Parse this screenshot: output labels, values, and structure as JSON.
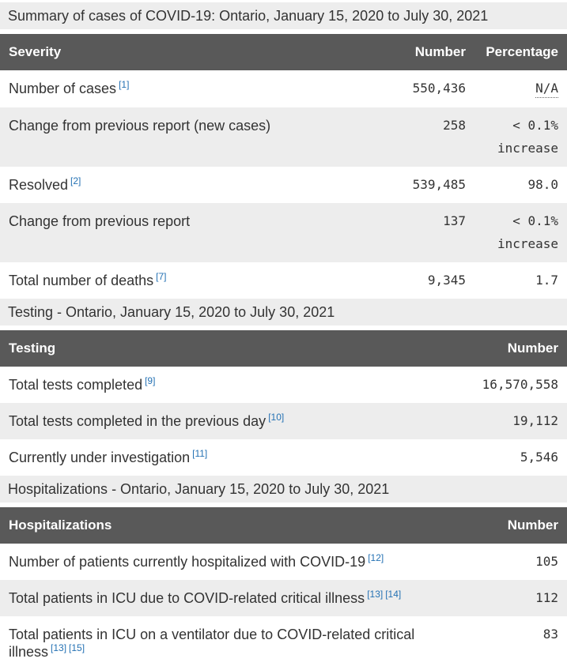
{
  "colors": {
    "header_bg": "#595959",
    "header_text": "#ffffff",
    "caption_bg": "#ededed",
    "stripe_bg": "#ededed",
    "body_bg": "#ffffff",
    "text": "#333333",
    "link": "#2572b4"
  },
  "tables": [
    {
      "caption": "Summary of cases of COVID-19: Ontario, January 15, 2020 to July 30, 2021",
      "columns": [
        "Severity",
        "Number",
        "Percentage"
      ],
      "rows": [
        {
          "label": "Number of cases",
          "footnotes": [
            "[1]"
          ],
          "number": "550,436",
          "percentage": "N/A",
          "percentage_note": ""
        },
        {
          "label": "Change from previous report (new cases)",
          "footnotes": [],
          "number": "258",
          "percentage": "< 0.1%",
          "percentage_note": "increase"
        },
        {
          "label": "Resolved",
          "footnotes": [
            "[2]"
          ],
          "number": "539,485",
          "percentage": "98.0",
          "percentage_note": ""
        },
        {
          "label": "Change from previous report",
          "footnotes": [],
          "number": "137",
          "percentage": "< 0.1%",
          "percentage_note": "increase"
        },
        {
          "label": "Total number of deaths",
          "footnotes": [
            "[7]"
          ],
          "number": "9,345",
          "percentage": "1.7",
          "percentage_note": ""
        }
      ]
    },
    {
      "caption": "Testing - Ontario, January 15, 2020 to July 30, 2021",
      "columns": [
        "Testing",
        "Number"
      ],
      "rows": [
        {
          "label": "Total tests completed",
          "footnotes": [
            "[9]"
          ],
          "number": "16,570,558"
        },
        {
          "label": "Total tests completed in the previous day",
          "footnotes": [
            "[10]"
          ],
          "number": "19,112"
        },
        {
          "label": "Currently under investigation",
          "footnotes": [
            "[11]"
          ],
          "number": "5,546"
        }
      ]
    },
    {
      "caption": "Hospitalizations - Ontario, January 15, 2020 to July 30, 2021",
      "columns": [
        "Hospitalizations",
        "Number"
      ],
      "rows": [
        {
          "label": "Number of patients currently hospitalized with COVID-19",
          "footnotes": [
            "[12]"
          ],
          "number": "105"
        },
        {
          "label": "Total patients in ICU due to COVID-related critical illness",
          "footnotes": [
            "[13]",
            "[14]"
          ],
          "number": "112"
        },
        {
          "label": "Total patients in ICU on a ventilator due to COVID-related critical illness",
          "footnotes": [
            "[13]",
            "[15]"
          ],
          "number": "83"
        }
      ]
    }
  ]
}
